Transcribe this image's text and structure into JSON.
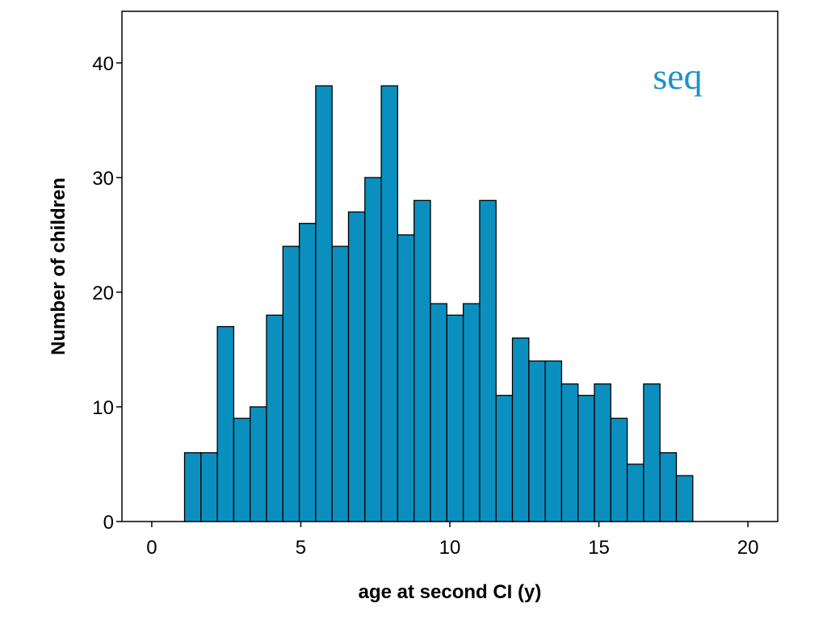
{
  "chart_data": {
    "type": "bar",
    "title": "",
    "xlabel": "age at second CI (y)",
    "ylabel": "Number of children",
    "annotation": "seq",
    "bar_color": "#0B8FBF",
    "annotation_color": "#1A93C7",
    "xlim": [
      -1.0,
      21.0
    ],
    "ylim": [
      0,
      44.5
    ],
    "x_ticks": [
      0,
      5,
      10,
      15,
      20
    ],
    "y_ticks": [
      0,
      10,
      20,
      30,
      40
    ],
    "bin_width": 0.55,
    "bins": [
      {
        "start": 1.1,
        "value": 6
      },
      {
        "start": 1.65,
        "value": 6
      },
      {
        "start": 2.2,
        "value": 17
      },
      {
        "start": 2.75,
        "value": 9
      },
      {
        "start": 3.3,
        "value": 10
      },
      {
        "start": 3.85,
        "value": 18
      },
      {
        "start": 4.4,
        "value": 24
      },
      {
        "start": 4.95,
        "value": 26
      },
      {
        "start": 5.5,
        "value": 38
      },
      {
        "start": 6.05,
        "value": 24
      },
      {
        "start": 6.6,
        "value": 27
      },
      {
        "start": 7.15,
        "value": 30
      },
      {
        "start": 7.7,
        "value": 38
      },
      {
        "start": 8.25,
        "value": 25
      },
      {
        "start": 8.8,
        "value": 28
      },
      {
        "start": 9.35,
        "value": 19
      },
      {
        "start": 9.9,
        "value": 18
      },
      {
        "start": 10.45,
        "value": 19
      },
      {
        "start": 11.0,
        "value": 28
      },
      {
        "start": 11.55,
        "value": 11
      },
      {
        "start": 12.1,
        "value": 16
      },
      {
        "start": 12.65,
        "value": 14
      },
      {
        "start": 13.2,
        "value": 14
      },
      {
        "start": 13.75,
        "value": 12
      },
      {
        "start": 14.3,
        "value": 11
      },
      {
        "start": 14.85,
        "value": 12
      },
      {
        "start": 15.4,
        "value": 9
      },
      {
        "start": 15.95,
        "value": 5
      },
      {
        "start": 16.5,
        "value": 12
      },
      {
        "start": 17.05,
        "value": 6
      },
      {
        "start": 17.6,
        "value": 4
      }
    ]
  }
}
